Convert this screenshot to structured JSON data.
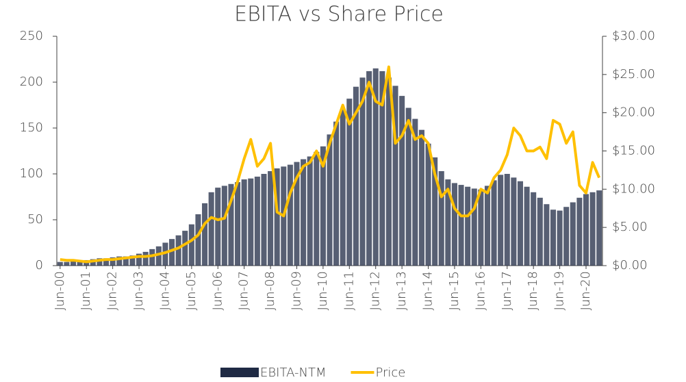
{
  "chart_data": {
    "type": "bar",
    "title": "EBITA vs Share Price",
    "categories": [
      "Jun-00",
      null,
      null,
      null,
      "Jun-01",
      null,
      null,
      null,
      "Jun-02",
      null,
      null,
      null,
      "Jun-03",
      null,
      null,
      null,
      "Jun-04",
      null,
      null,
      null,
      "Jun-05",
      null,
      null,
      null,
      "Jun-06",
      null,
      null,
      null,
      "Jun-07",
      null,
      null,
      null,
      "Jun-08",
      null,
      null,
      null,
      "Jun-09",
      null,
      null,
      null,
      "Jun-10",
      null,
      null,
      null,
      "Jun-11",
      null,
      null,
      null,
      "Jun-12",
      null,
      null,
      null,
      "Jun-13",
      null,
      null,
      null,
      "Jun-14",
      null,
      null,
      null,
      "Jun-15",
      null,
      null,
      null,
      "Jun-16",
      null,
      null,
      null,
      "Jun-17",
      null,
      null,
      null,
      "Jun-18",
      null,
      null,
      null,
      "Jun-19",
      null,
      null,
      null,
      "Jun-20",
      null,
      null
    ],
    "series": [
      {
        "name": "EBITA-NTM",
        "type": "bar",
        "color": "#1f2a44",
        "values": [
          4,
          4,
          5,
          5,
          6,
          7,
          8,
          8,
          9,
          10,
          10,
          11,
          13,
          15,
          18,
          21,
          25,
          29,
          33,
          38,
          45,
          56,
          68,
          80,
          85,
          87,
          89,
          91,
          94,
          95,
          97,
          100,
          103,
          106,
          108,
          110,
          113,
          116,
          119,
          124,
          130,
          143,
          157,
          170,
          182,
          195,
          205,
          212,
          215,
          212,
          205,
          196,
          185,
          172,
          160,
          148,
          133,
          118,
          103,
          94,
          90,
          88,
          86,
          84,
          83,
          87,
          93,
          99,
          100,
          96,
          92,
          86,
          80,
          74,
          67,
          61,
          60,
          64,
          69,
          74,
          78,
          80,
          82
        ]
      },
      {
        "name": "Price",
        "type": "line",
        "axis": "y2",
        "color": "#ffc000",
        "values": [
          0.8,
          0.7,
          0.7,
          0.6,
          0.5,
          0.6,
          0.7,
          0.8,
          0.8,
          0.9,
          1.0,
          1.1,
          1.2,
          1.2,
          1.3,
          1.5,
          1.7,
          2.0,
          2.3,
          2.8,
          3.3,
          4.0,
          5.5,
          6.3,
          6.0,
          6.2,
          8.5,
          11.0,
          14.0,
          16.5,
          13.0,
          14.0,
          16.0,
          7.0,
          6.5,
          9.5,
          11.5,
          13.0,
          13.5,
          15.0,
          13.0,
          16.0,
          18.5,
          21.0,
          18.5,
          20.0,
          21.5,
          24.0,
          21.5,
          21.0,
          26.0,
          16.0,
          17.0,
          19.0,
          16.5,
          17.0,
          16.0,
          12.0,
          9.0,
          10.0,
          7.5,
          6.5,
          6.5,
          7.5,
          10.0,
          9.5,
          11.5,
          12.5,
          14.5,
          18.0,
          17.0,
          15.0,
          15.0,
          15.5,
          14.0,
          19.0,
          18.5,
          16.0,
          17.5,
          10.5,
          9.5,
          13.5,
          11.5
        ]
      }
    ],
    "ylim": [
      0,
      250
    ],
    "yticks": [
      0,
      50,
      100,
      150,
      200,
      250
    ],
    "y2lim": [
      0,
      30
    ],
    "y2ticks": [
      {
        "value": 0,
        "label": "$0.00"
      },
      {
        "value": 5,
        "label": "$5.00"
      },
      {
        "value": 10,
        "label": "$10.00"
      },
      {
        "value": 15,
        "label": "$15.00"
      },
      {
        "value": 20,
        "label": "$20.00"
      },
      {
        "value": 25,
        "label": "$25.00"
      },
      {
        "value": 30,
        "label": "$30.00"
      }
    ],
    "grid": false,
    "legend": "bottom"
  }
}
